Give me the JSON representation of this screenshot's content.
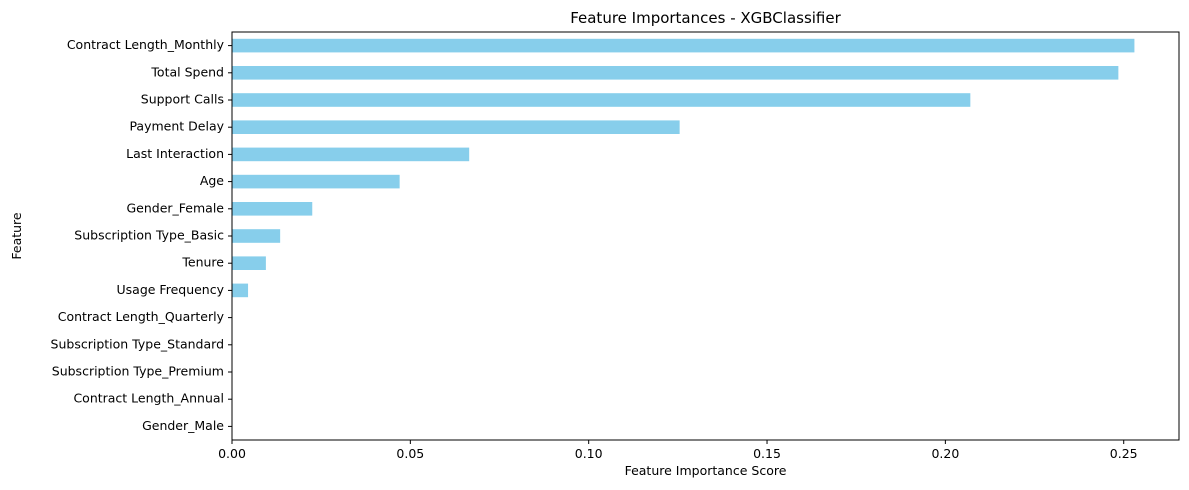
{
  "chart_data": {
    "type": "bar",
    "orientation": "horizontal",
    "title": "Feature Importances - XGBClassifier",
    "xlabel": "Feature Importance Score",
    "ylabel": "Feature",
    "xlim": [
      0,
      0.2655
    ],
    "xticks": [
      0.0,
      0.05,
      0.1,
      0.15,
      0.2,
      0.25
    ],
    "xtick_labels": [
      "0.00",
      "0.05",
      "0.10",
      "0.15",
      "0.20",
      "0.25"
    ],
    "bar_color": "#87ceeb",
    "grid": false,
    "legend": "none",
    "categories": [
      "Contract Length_Monthly",
      "Total Spend",
      "Support Calls",
      "Payment Delay",
      "Last Interaction",
      "Age",
      "Gender_Female",
      "Subscription Type_Basic",
      "Tenure",
      "Usage Frequency",
      "Contract Length_Quarterly",
      "Subscription Type_Standard",
      "Subscription Type_Premium",
      "Contract Length_Annual",
      "Gender_Male"
    ],
    "values": [
      0.253,
      0.2485,
      0.207,
      0.1255,
      0.0665,
      0.047,
      0.0225,
      0.0135,
      0.0095,
      0.0045,
      0.0,
      0.0,
      0.0,
      0.0,
      0.0
    ]
  }
}
